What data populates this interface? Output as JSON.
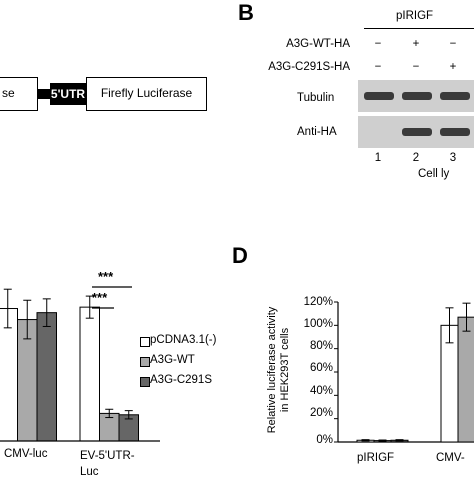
{
  "panel_b": {
    "letter": "B",
    "plasmid_label": "pIRIGF",
    "rows": [
      {
        "label": "A3G-WT-HA",
        "marks": [
          "−",
          "+",
          "−"
        ]
      },
      {
        "label": "A3G-C291S-HA",
        "marks": [
          "−",
          "−",
          "+"
        ]
      }
    ],
    "blot_labels": [
      "Tubulin",
      "Anti-HA"
    ],
    "lanes": [
      "1",
      "2",
      "3"
    ],
    "lysate_label": "Cell ly"
  },
  "panel_a": {
    "construct_left": "se",
    "construct_mid": "5'UTR",
    "construct_right": "Firefly Luciferase",
    "colors": {
      "mid_box": "#000000",
      "mid_text": "#ffffff"
    }
  },
  "panel_c": {
    "significance": [
      "***",
      "***"
    ],
    "legend": [
      {
        "label": "pCDNA3.1(-)",
        "color": "#ffffff"
      },
      {
        "label": "A3G-WT",
        "color": "#a9a9a9"
      },
      {
        "label": "A3G-C291S",
        "color": "#666666"
      }
    ],
    "xtick_labels": [
      "CMV-luc",
      "EV-5'UTR-\nLuc"
    ]
  },
  "panel_d": {
    "letter": "D",
    "ylabel_lines": [
      "Relative luciferase activity",
      "in HEK293T cells"
    ],
    "yticks": [
      "120%",
      "100%",
      "80%",
      "60%",
      "40%",
      "20%",
      "0%"
    ],
    "xtick_labels": [
      "pIRIGF",
      "CMV-"
    ]
  },
  "chart_data": [
    {
      "type": "bar",
      "categories": [
        "CMV-luc",
        "EV-5'UTR-Luc"
      ],
      "series": [
        {
          "name": "pCDNA3.1(-)",
          "values": [
            96,
            97
          ],
          "errors": [
            14,
            8
          ]
        },
        {
          "name": "A3G-WT",
          "values": [
            88,
            20
          ],
          "errors": [
            14,
            3
          ]
        },
        {
          "name": "A3G-C291S",
          "values": [
            93,
            19
          ],
          "errors": [
            10,
            3
          ]
        }
      ],
      "ylim": [
        0,
        130
      ]
    },
    {
      "type": "bar",
      "categories": [
        "pIRIGF",
        "CMV-"
      ],
      "series": [
        {
          "name": "pCDNA3.1(-)",
          "values": [
            1.5,
            100
          ],
          "errors": [
            0.5,
            15
          ]
        },
        {
          "name": "A3G-WT",
          "values": [
            1.2,
            107
          ],
          "errors": [
            0.5,
            12
          ]
        },
        {
          "name": "A3G-C291S",
          "values": [
            1.5,
            null
          ],
          "errors": [
            0.5,
            null
          ]
        }
      ],
      "ylabel": "Relative luciferase activity in HEK293T cells",
      "ylim": [
        0,
        120
      ]
    }
  ]
}
